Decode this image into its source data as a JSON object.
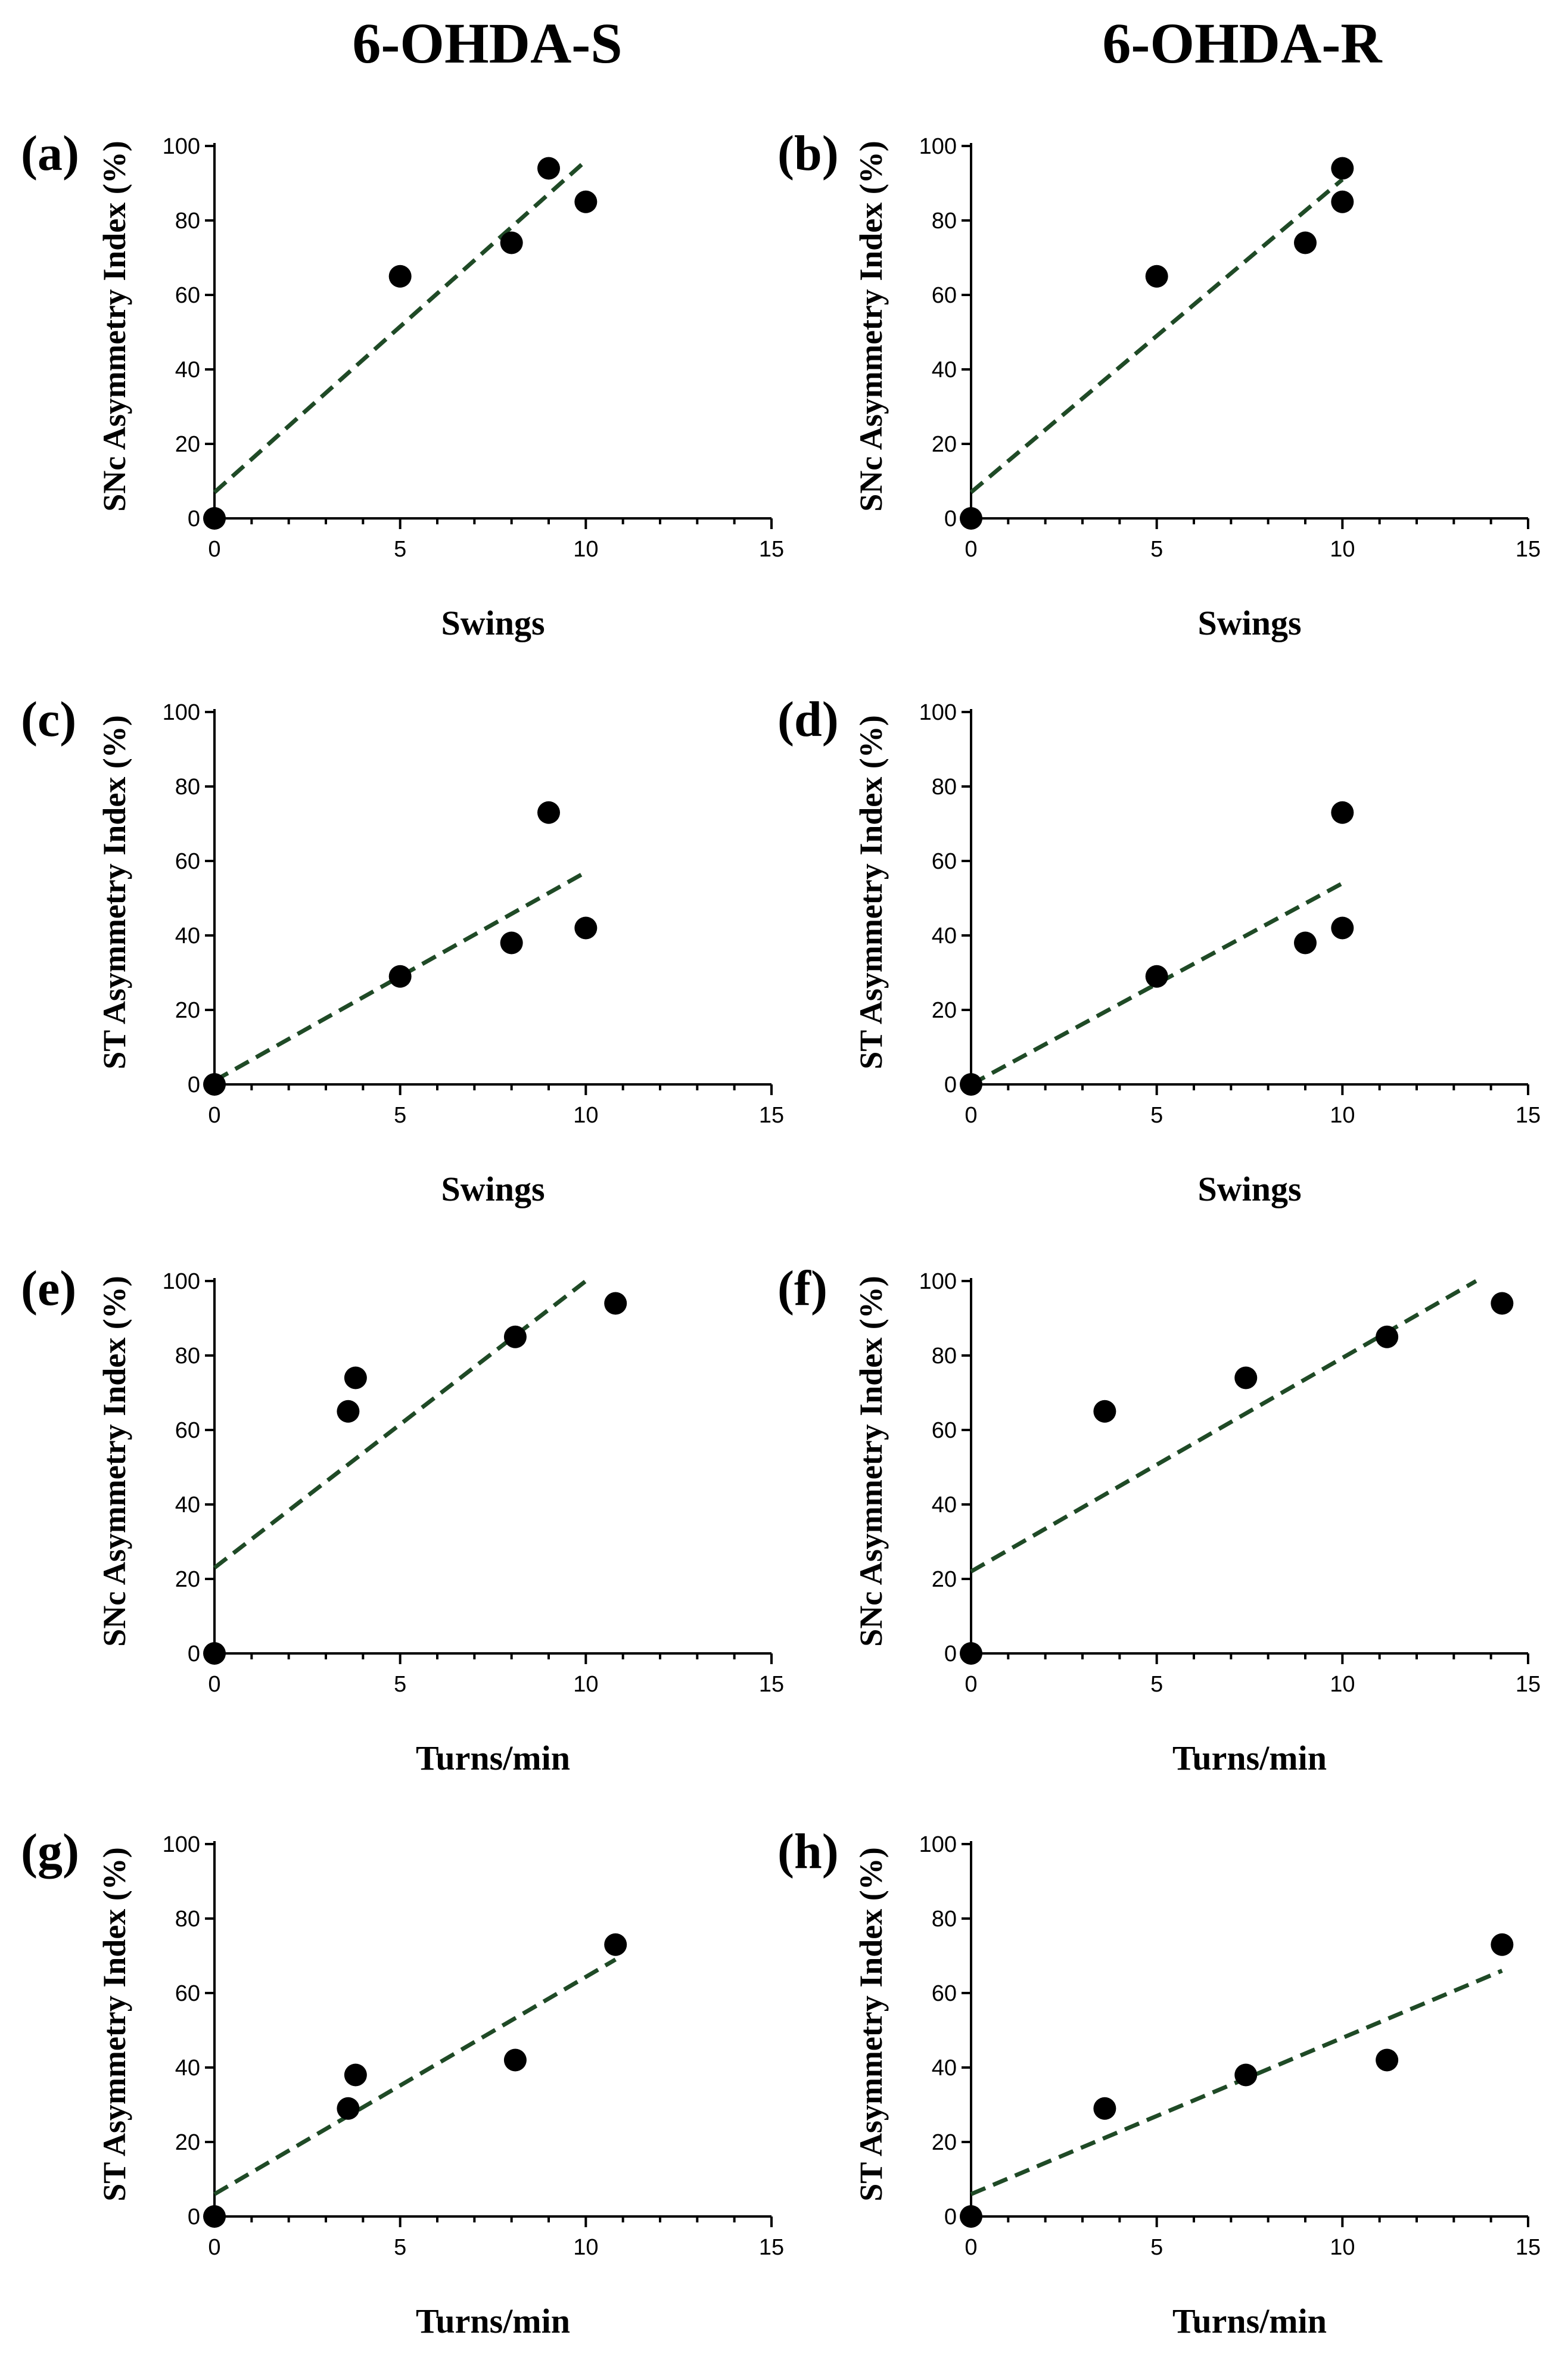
{
  "colors": {
    "fit_line": "#1f4a26",
    "points": "#000000",
    "axes": "#000000"
  },
  "column_titles": [
    "6-OHDA-S",
    "6-OHDA-R"
  ],
  "chart_data": [
    {
      "panel": "(a)",
      "type": "scatter",
      "title": "",
      "xlabel": "Swings",
      "ylabel": "SNc Asymmetry Index (%)",
      "xlim": [
        0,
        15
      ],
      "ylim": [
        0,
        100
      ],
      "xticks": [
        0,
        5,
        10,
        15
      ],
      "yticks": [
        0,
        20,
        40,
        60,
        80,
        100
      ],
      "grid": false,
      "x": [
        0,
        5,
        8,
        9,
        10
      ],
      "y": [
        0,
        65,
        74,
        94,
        85
      ],
      "fit_line": {
        "style": "dashed",
        "x": [
          0,
          10
        ],
        "y": [
          7,
          96
        ]
      }
    },
    {
      "panel": "(b)",
      "type": "scatter",
      "title": "",
      "xlabel": "Swings",
      "ylabel": "SNc Asymmetry Index (%)",
      "xlim": [
        0,
        15
      ],
      "ylim": [
        0,
        100
      ],
      "xticks": [
        0,
        5,
        10,
        15
      ],
      "yticks": [
        0,
        20,
        40,
        60,
        80,
        100
      ],
      "grid": false,
      "x": [
        0,
        5,
        9,
        10,
        10
      ],
      "y": [
        0,
        65,
        74,
        94,
        85
      ],
      "fit_line": {
        "style": "dashed",
        "x": [
          0,
          10
        ],
        "y": [
          7,
          91
        ]
      }
    },
    {
      "panel": "(c)",
      "type": "scatter",
      "title": "",
      "xlabel": "Swings",
      "ylabel": "ST Asymmetry Index (%)",
      "xlim": [
        0,
        15
      ],
      "ylim": [
        0,
        100
      ],
      "xticks": [
        0,
        5,
        10,
        15
      ],
      "yticks": [
        0,
        20,
        40,
        60,
        80,
        100
      ],
      "grid": false,
      "x": [
        0,
        5,
        8,
        9,
        10
      ],
      "y": [
        0,
        29,
        38,
        73,
        42
      ],
      "fit_line": {
        "style": "dashed",
        "x": [
          0,
          10
        ],
        "y": [
          1,
          57
        ]
      }
    },
    {
      "panel": "(d)",
      "type": "scatter",
      "title": "",
      "xlabel": "Swings",
      "ylabel": "ST Asymmetry Index (%)",
      "xlim": [
        0,
        15
      ],
      "ylim": [
        0,
        100
      ],
      "xticks": [
        0,
        5,
        10,
        15
      ],
      "yticks": [
        0,
        20,
        40,
        60,
        80,
        100
      ],
      "grid": false,
      "x": [
        0,
        5,
        9,
        10,
        10
      ],
      "y": [
        0,
        29,
        38,
        73,
        42
      ],
      "fit_line": {
        "style": "dashed",
        "x": [
          0,
          10
        ],
        "y": [
          0,
          54
        ]
      }
    },
    {
      "panel": "(e)",
      "type": "scatter",
      "title": "",
      "xlabel": "Turns/min",
      "ylabel": "SNc Asymmetry Index (%)",
      "xlim": [
        0,
        15
      ],
      "ylim": [
        0,
        100
      ],
      "xticks": [
        0,
        5,
        10,
        15
      ],
      "yticks": [
        0,
        20,
        40,
        60,
        80,
        100
      ],
      "grid": false,
      "x": [
        0,
        3.6,
        3.8,
        8.1,
        10.8
      ],
      "y": [
        0,
        65,
        74,
        85,
        94
      ],
      "fit_line": {
        "style": "dashed",
        "x": [
          0,
          10
        ],
        "y": [
          23,
          100
        ]
      }
    },
    {
      "panel": "(f)",
      "type": "scatter",
      "title": "",
      "xlabel": "Turns/min",
      "ylabel": "SNc Asymmetry Index (%)",
      "xlim": [
        0,
        15
      ],
      "ylim": [
        0,
        100
      ],
      "xticks": [
        0,
        5,
        10,
        15
      ],
      "yticks": [
        0,
        20,
        40,
        60,
        80,
        100
      ],
      "grid": false,
      "x": [
        0,
        3.6,
        7.4,
        11.2,
        14.3
      ],
      "y": [
        0,
        65,
        74,
        85,
        94
      ],
      "fit_line": {
        "style": "dashed",
        "x": [
          0,
          13.6
        ],
        "y": [
          22,
          100
        ]
      }
    },
    {
      "panel": "(g)",
      "type": "scatter",
      "title": "",
      "xlabel": "Turns/min",
      "ylabel": "ST Asymmetry Index (%)",
      "xlim": [
        0,
        15
      ],
      "ylim": [
        0,
        100
      ],
      "xticks": [
        0,
        5,
        10,
        15
      ],
      "yticks": [
        0,
        20,
        40,
        60,
        80,
        100
      ],
      "grid": false,
      "x": [
        0,
        3.6,
        3.8,
        8.1,
        10.8
      ],
      "y": [
        0,
        29,
        38,
        42,
        73
      ],
      "fit_line": {
        "style": "dashed",
        "x": [
          0,
          10.8
        ],
        "y": [
          6,
          69
        ]
      }
    },
    {
      "panel": "(h)",
      "type": "scatter",
      "title": "",
      "xlabel": "Turns/min",
      "ylabel": "ST Asymmetry Index (%)",
      "xlim": [
        0,
        15
      ],
      "ylim": [
        0,
        100
      ],
      "xticks": [
        0,
        5,
        10,
        15
      ],
      "yticks": [
        0,
        20,
        40,
        60,
        80,
        100
      ],
      "grid": false,
      "x": [
        0,
        3.6,
        7.4,
        11.2,
        14.3
      ],
      "y": [
        0,
        29,
        38,
        42,
        73
      ],
      "fit_line": {
        "style": "dashed",
        "x": [
          0,
          14.3
        ],
        "y": [
          6,
          66
        ]
      }
    }
  ]
}
